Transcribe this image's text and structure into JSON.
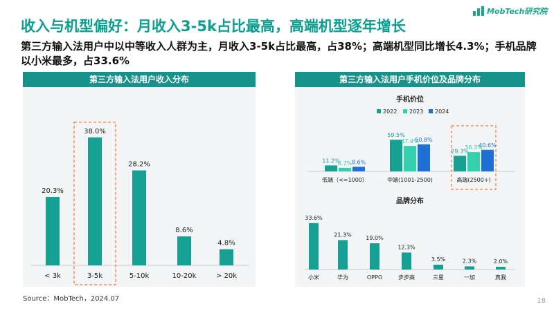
{
  "header": {
    "title": "收入与机型偏好：月收入3-5k占比最高，高端机型逐年增长",
    "subtitle": "第三方输入法用户中以中等收入人群为主，月收入3-5k占比最高，占38%；高端机型同比增长4.3%；手机品牌以小米最多，占33.6%",
    "logo_text": "MobTech研究院"
  },
  "colors": {
    "accent": "#0aa08f",
    "panel_header": "#16928a",
    "bar_teal": "#16a093",
    "series_2023": "#33d1b0",
    "series_2024": "#1f6fd6",
    "highlight": "#f07a3c"
  },
  "chart_data": [
    {
      "type": "bar",
      "title": "第三方输入法用户收入分布",
      "categories": [
        "< 3k",
        "3-5k",
        "5-10k",
        "10-20k",
        "> 20k"
      ],
      "values": [
        20.3,
        38.0,
        28.2,
        8.6,
        4.8
      ],
      "value_labels": [
        "20.3%",
        "38.0%",
        "28.2%",
        "8.6%",
        "4.8%"
      ],
      "highlight_category": "3-5k",
      "ylim": [
        0,
        40
      ]
    },
    {
      "type": "bar",
      "title": "第三方输入法用户手机价位及品牌分布",
      "subtitle": "手机价位",
      "categories": [
        "低端（<=1000）",
        "中端(1001-2500)",
        "高端(2500+)"
      ],
      "series": [
        {
          "name": "2022",
          "values": [
            11.2,
            59.5,
            29.3
          ],
          "labels": [
            "11.2%",
            "59.5%",
            "29.3%"
          ]
        },
        {
          "name": "2023",
          "values": [
            6.7,
            47.9,
            36.3
          ],
          "labels": [
            "6.7%",
            "47.9%",
            "36.3%"
          ]
        },
        {
          "name": "2024",
          "values": [
            8.6,
            50.8,
            40.6
          ],
          "labels": [
            "8.6%",
            "50.8%",
            "40.6%"
          ]
        }
      ],
      "highlight_category": "高端(2500+)",
      "legend": "top-center",
      "ylim": [
        0,
        65
      ]
    },
    {
      "type": "bar",
      "subtitle": "品牌分布",
      "categories": [
        "小米",
        "华为",
        "OPPO",
        "步步高",
        "三星",
        "一加",
        "真我"
      ],
      "values": [
        33.6,
        21.3,
        19.0,
        12.3,
        3.5,
        2.3,
        2.0
      ],
      "value_labels": [
        "33.6%",
        "21.3%",
        "19.0%",
        "12.3%",
        "3.5%",
        "2.3%",
        "2.0%"
      ],
      "ylim": [
        0,
        35
      ]
    }
  ],
  "footer": {
    "source": "Source：MobTech，2024.07",
    "page_number": "18"
  }
}
